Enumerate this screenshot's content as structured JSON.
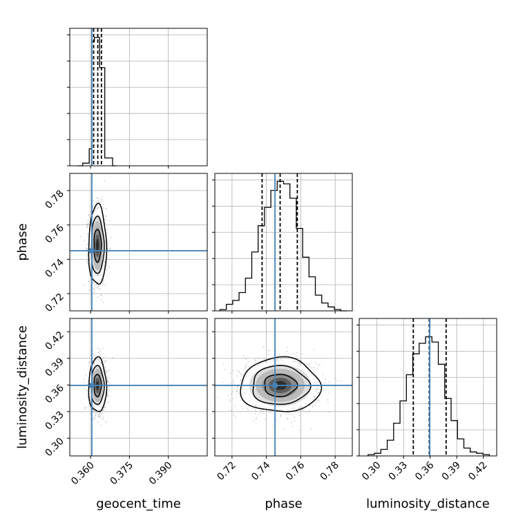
{
  "chart_data": {
    "type": "corner",
    "parameters": [
      {
        "name": "geocent_time",
        "label": "geocent_time",
        "range": [
          0.352,
          0.405
        ],
        "ticks": [
          0.36,
          0.375,
          0.39
        ],
        "tick_labels": [
          "0.360",
          "0.375",
          "0.390"
        ],
        "truth": 0.3605,
        "quantiles": [
          0.3612,
          0.3628,
          0.3642
        ],
        "hist": [
          0,
          0.02,
          0.13,
          0.95,
          0.98,
          0.75,
          0.06,
          0
        ],
        "hist_edges": [
          0.355,
          0.357,
          0.3595,
          0.3605,
          0.3615,
          0.3635,
          0.3655,
          0.3685,
          0.37
        ]
      },
      {
        "name": "phase",
        "label": "phase",
        "range": [
          0.71,
          0.79
        ],
        "ticks": [
          0.72,
          0.74,
          0.76,
          0.78
        ],
        "tick_labels": [
          "0.72",
          "0.74",
          "0.76",
          "0.78"
        ],
        "truth": 0.745,
        "quantiles": [
          0.7375,
          0.748,
          0.758
        ],
        "hist": [
          0.01,
          0.05,
          0.08,
          0.14,
          0.25,
          0.45,
          0.65,
          0.79,
          0.92,
          0.99,
          0.97,
          0.86,
          0.63,
          0.41,
          0.26,
          0.12,
          0.06,
          0.03,
          0.01,
          0
        ],
        "hist_start": 0.713,
        "hist_step": 0.0037
      },
      {
        "name": "luminosity_distance",
        "label": "luminosity_distance",
        "range": [
          0.28,
          0.435
        ],
        "ticks": [
          0.3,
          0.33,
          0.36,
          0.39,
          0.42
        ],
        "tick_labels": [
          "0.30",
          "0.33",
          "0.36",
          "0.39",
          "0.42"
        ],
        "truth": 0.3595,
        "quantiles": [
          0.341,
          0.359,
          0.378
        ],
        "hist": [
          0.01,
          0.02,
          0.05,
          0.12,
          0.25,
          0.42,
          0.62,
          0.78,
          0.86,
          0.91,
          0.87,
          0.7,
          0.44,
          0.27,
          0.13,
          0.06,
          0.03,
          0.02,
          0.01
        ],
        "hist_start": 0.29,
        "hist_step": 0.0072
      }
    ],
    "truth_color": "#4682b4",
    "contour_levels": 3,
    "grid": true
  }
}
